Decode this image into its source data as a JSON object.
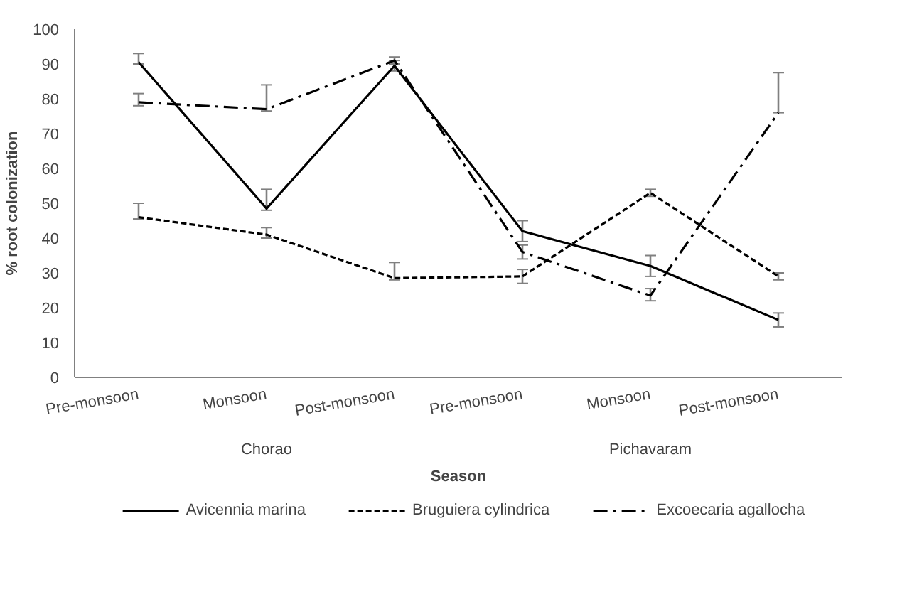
{
  "chart_data": {
    "type": "line",
    "xlabel": "Season",
    "ylabel": "% root colonization",
    "categories": [
      "Pre-monsoon",
      "Monsoon",
      "Post-monsoon",
      "Pre-monsoon",
      "Monsoon",
      "Post-monsoon"
    ],
    "annotations": [
      "Chorao",
      "Pichavaram"
    ],
    "ylim": [
      0,
      100
    ],
    "yticks": [
      0,
      10,
      20,
      30,
      40,
      50,
      60,
      70,
      80,
      90,
      100
    ],
    "grid": false,
    "legend": "bottom",
    "marker": "none",
    "series": [
      {
        "name": "Avicennia marina",
        "color": "#000000",
        "line_style": "solid",
        "values": [
          90.5,
          48.5,
          89.5,
          42,
          32,
          16.5
        ],
        "errors": [
          [
            90,
            93
          ],
          [
            48,
            54
          ],
          [
            88,
            91
          ],
          [
            39,
            45
          ],
          [
            29,
            35
          ],
          [
            14.5,
            18.5
          ]
        ]
      },
      {
        "name": "Bruguiera cylindrica",
        "color": "#000000",
        "line_style": "dashed",
        "values": [
          46,
          41,
          28.5,
          29,
          53,
          29
        ],
        "errors": [
          [
            45.5,
            50
          ],
          [
            40,
            43
          ],
          [
            28,
            33
          ],
          [
            27,
            31
          ],
          [
            52,
            54
          ],
          [
            28,
            30
          ]
        ]
      },
      {
        "name": "Excoecaria agallocha",
        "color": "#000000",
        "line_style": "dashdot",
        "values": [
          79,
          77,
          91,
          36,
          23.5,
          76
        ],
        "errors": [
          [
            78,
            81.5
          ],
          [
            76.5,
            84
          ],
          [
            90,
            92
          ],
          [
            34,
            38
          ],
          [
            22,
            25.5
          ],
          [
            76,
            87.5
          ]
        ]
      }
    ]
  }
}
